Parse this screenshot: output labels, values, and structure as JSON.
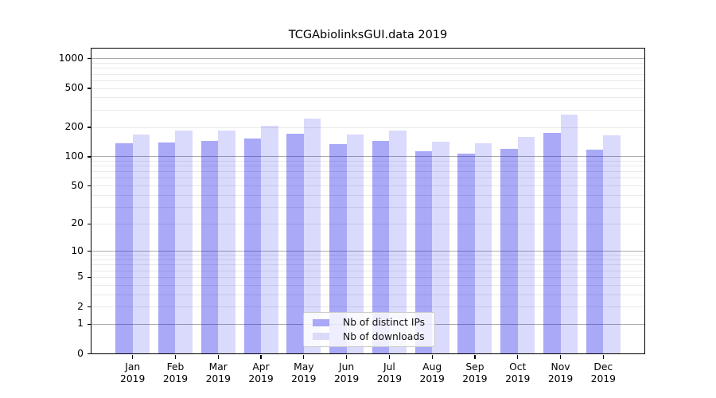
{
  "title": "TCGAbiolinksGUI.data 2019",
  "chart_data": {
    "type": "bar",
    "title": "TCGAbiolinksGUI.data 2019",
    "categories": [
      "Jan 2019",
      "Feb 2019",
      "Mar 2019",
      "Apr 2019",
      "May 2019",
      "Jun 2019",
      "Jul 2019",
      "Aug 2019",
      "Sep 2019",
      "Oct 2019",
      "Nov 2019",
      "Dec 2019"
    ],
    "series": [
      {
        "name": "Nb of distinct IPs",
        "swatch_color": "#a9a9f8",
        "fill": "rgba(10,10,235,0.35)",
        "values": [
          138,
          140,
          145,
          155,
          172,
          136,
          145,
          113,
          107,
          121,
          177,
          119
        ]
      },
      {
        "name": "Nb of downloads",
        "swatch_color": "#dadaf9",
        "fill": "rgba(10,10,235,0.15)",
        "values": [
          168,
          185,
          184,
          209,
          246,
          168,
          187,
          142,
          138,
          161,
          269,
          165
        ]
      }
    ],
    "yscale": "log1p",
    "ylim": [
      0,
      1272
    ],
    "y_ticks": [
      1000,
      500,
      200,
      100,
      50,
      20,
      10,
      5,
      2,
      1,
      0
    ],
    "grid": {
      "major_lines": [
        1,
        10,
        100,
        1000
      ],
      "minor_mantissas": [
        2,
        3,
        4,
        5,
        6,
        7,
        8,
        9
      ],
      "minor_decades": [
        1,
        10,
        100
      ]
    },
    "legend": {
      "position": "lower center"
    },
    "colors": {
      "major_grid": "#ababab",
      "minor_grid": "#e9e9e9",
      "axis": "#000000",
      "text": "#000000"
    }
  }
}
